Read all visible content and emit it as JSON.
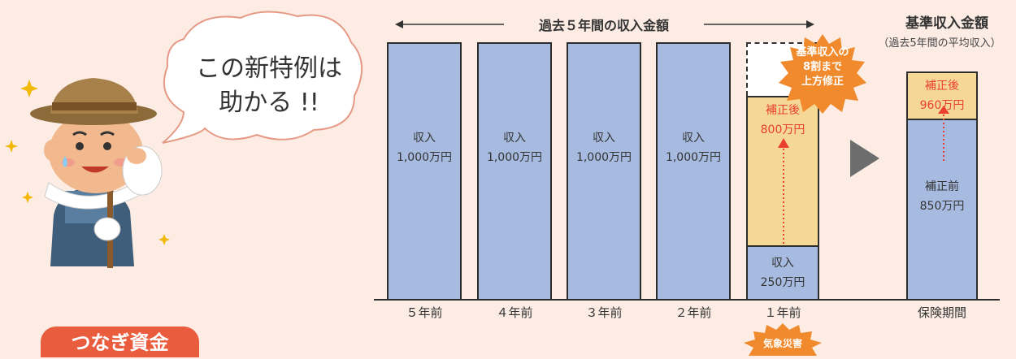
{
  "speech_bubble": {
    "line1": "この新特例は",
    "line2": "助かる !!"
  },
  "label_tsunagi": "つなぎ資金",
  "header_arrow_label": "過去５年間の収入金額",
  "base_title": "基準収入金額",
  "base_subtitle": "（過去5年間の平均収入）",
  "burst_label": "基準収入の\n8割まで\n上方修正",
  "disaster_label": "気象災害",
  "chart_data": {
    "type": "bar",
    "categories": [
      "５年前",
      "４年前",
      "３年前",
      "２年前",
      "１年前",
      "保険期間"
    ],
    "series": [
      {
        "values": [
          1000,
          1000,
          1000,
          1000,
          250,
          850
        ]
      }
    ],
    "corrected": {
      "one_year_ago": 800,
      "insurance_period": 960
    },
    "unit": "万円",
    "bar_labels": {
      "y5": [
        "収入",
        "1,000万円"
      ],
      "y4": [
        "収入",
        "1,000万円"
      ],
      "y3": [
        "収入",
        "1,000万円"
      ],
      "y2": [
        "収入",
        "1,000万円"
      ],
      "y1_actual": [
        "収入",
        "250万円"
      ],
      "y1_corrected": [
        "補正後",
        "800万円"
      ],
      "ip_before": [
        "補正前",
        "850万円"
      ],
      "ip_after": [
        "補正後",
        "960万円"
      ]
    },
    "colors": {
      "income": "#a7bbe0",
      "corrected": "#f6d896",
      "accent": "#e8402c",
      "burst": "#f08a2c"
    }
  }
}
